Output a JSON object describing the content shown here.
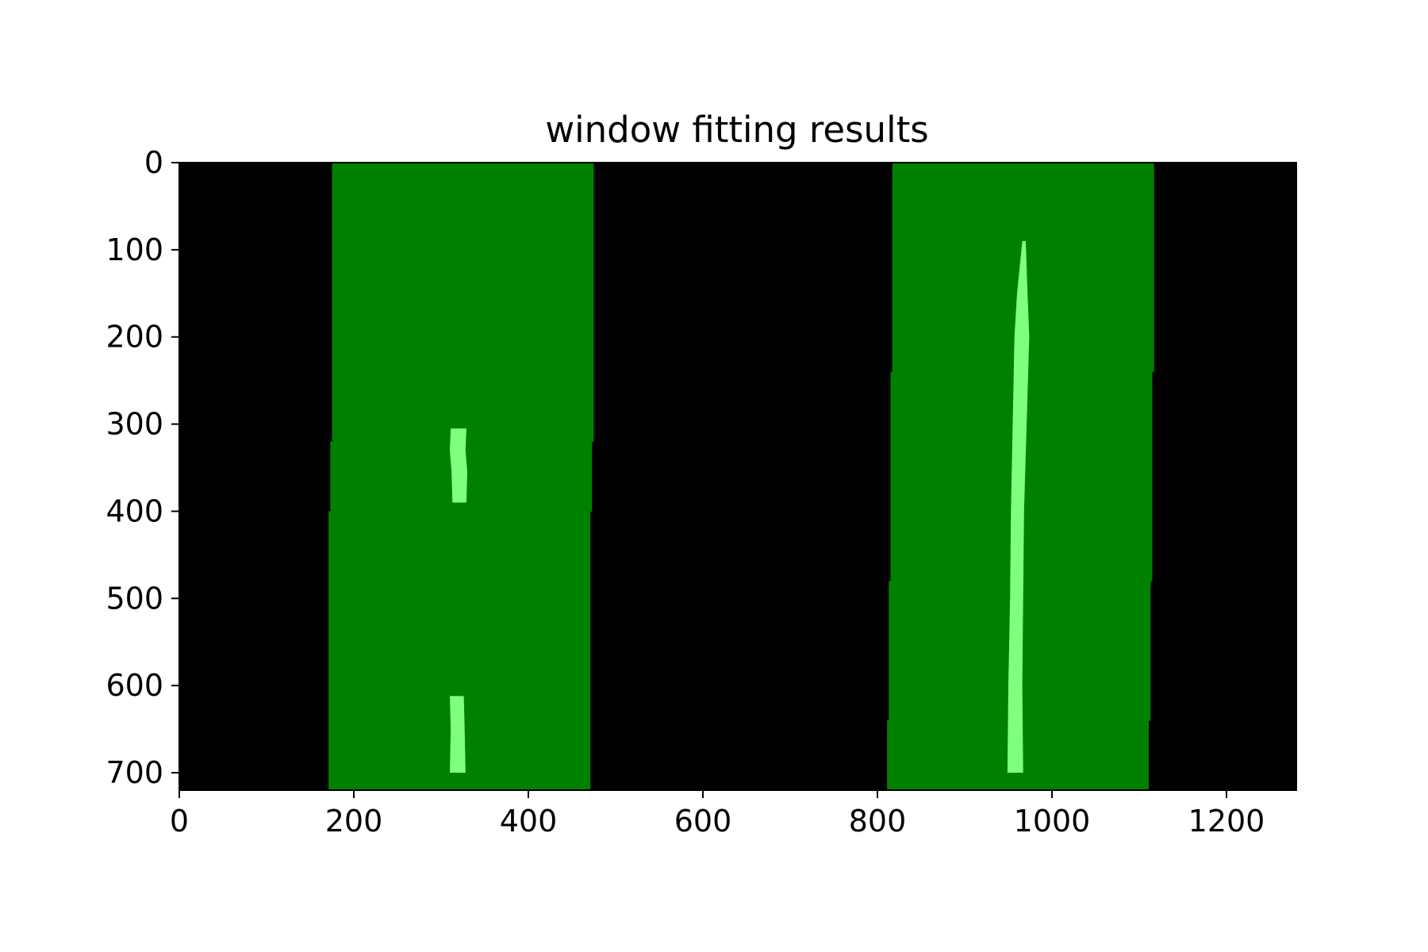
{
  "chart_data": {
    "type": "image",
    "title": "window fitting results",
    "xlabel": "",
    "ylabel": "",
    "xlim": [
      0,
      1280
    ],
    "ylim": [
      720,
      0
    ],
    "y_inverted": true,
    "xticks": [
      0,
      200,
      400,
      600,
      800,
      1000,
      1200
    ],
    "xtick_labels": [
      "0",
      "200",
      "400",
      "600",
      "800",
      "1000",
      "1200"
    ],
    "yticks": [
      0,
      100,
      200,
      300,
      400,
      500,
      600,
      700
    ],
    "ytick_labels": [
      "0",
      "100",
      "200",
      "300",
      "400",
      "500",
      "600",
      "700"
    ],
    "grid": false,
    "colors": {
      "background": "#000000",
      "window": "#008000",
      "lane_pixels": "#80ff80",
      "axes": "#000000",
      "figure_background": "#ffffff"
    },
    "window_columns": [
      {
        "name": "left",
        "windows": [
          {
            "y0": 0,
            "y1": 320,
            "x0": 175,
            "x1": 475
          },
          {
            "y0": 320,
            "y1": 400,
            "x0": 173,
            "x1": 473
          },
          {
            "y0": 400,
            "y1": 720,
            "x0": 171,
            "x1": 471
          }
        ]
      },
      {
        "name": "right",
        "windows": [
          {
            "y0": 0,
            "y1": 240,
            "x0": 817,
            "x1": 1117
          },
          {
            "y0": 240,
            "y1": 480,
            "x0": 815,
            "x1": 1115
          },
          {
            "y0": 480,
            "y1": 640,
            "x0": 813,
            "x1": 1113
          },
          {
            "y0": 640,
            "y1": 720,
            "x0": 811,
            "x1": 1111
          }
        ]
      }
    ],
    "lane_segments": [
      {
        "name": "left-upper",
        "points": [
          {
            "y": 305,
            "x0": 311,
            "x1": 329
          },
          {
            "y": 330,
            "x0": 310,
            "x1": 328
          },
          {
            "y": 355,
            "x0": 312,
            "x1": 330
          },
          {
            "y": 390,
            "x0": 313,
            "x1": 329
          }
        ]
      },
      {
        "name": "left-lower",
        "points": [
          {
            "y": 612,
            "x0": 310,
            "x1": 326
          },
          {
            "y": 650,
            "x0": 311,
            "x1": 327
          },
          {
            "y": 700,
            "x0": 310,
            "x1": 328
          }
        ]
      },
      {
        "name": "right-lane",
        "points": [
          {
            "y": 90,
            "x0": 966,
            "x1": 970
          },
          {
            "y": 150,
            "x0": 960,
            "x1": 972
          },
          {
            "y": 200,
            "x0": 957,
            "x1": 974
          },
          {
            "y": 300,
            "x0": 955,
            "x1": 971
          },
          {
            "y": 400,
            "x0": 953,
            "x1": 968
          },
          {
            "y": 500,
            "x0": 952,
            "x1": 967
          },
          {
            "y": 600,
            "x0": 950,
            "x1": 966
          },
          {
            "y": 700,
            "x0": 949,
            "x1": 967
          }
        ]
      }
    ]
  }
}
